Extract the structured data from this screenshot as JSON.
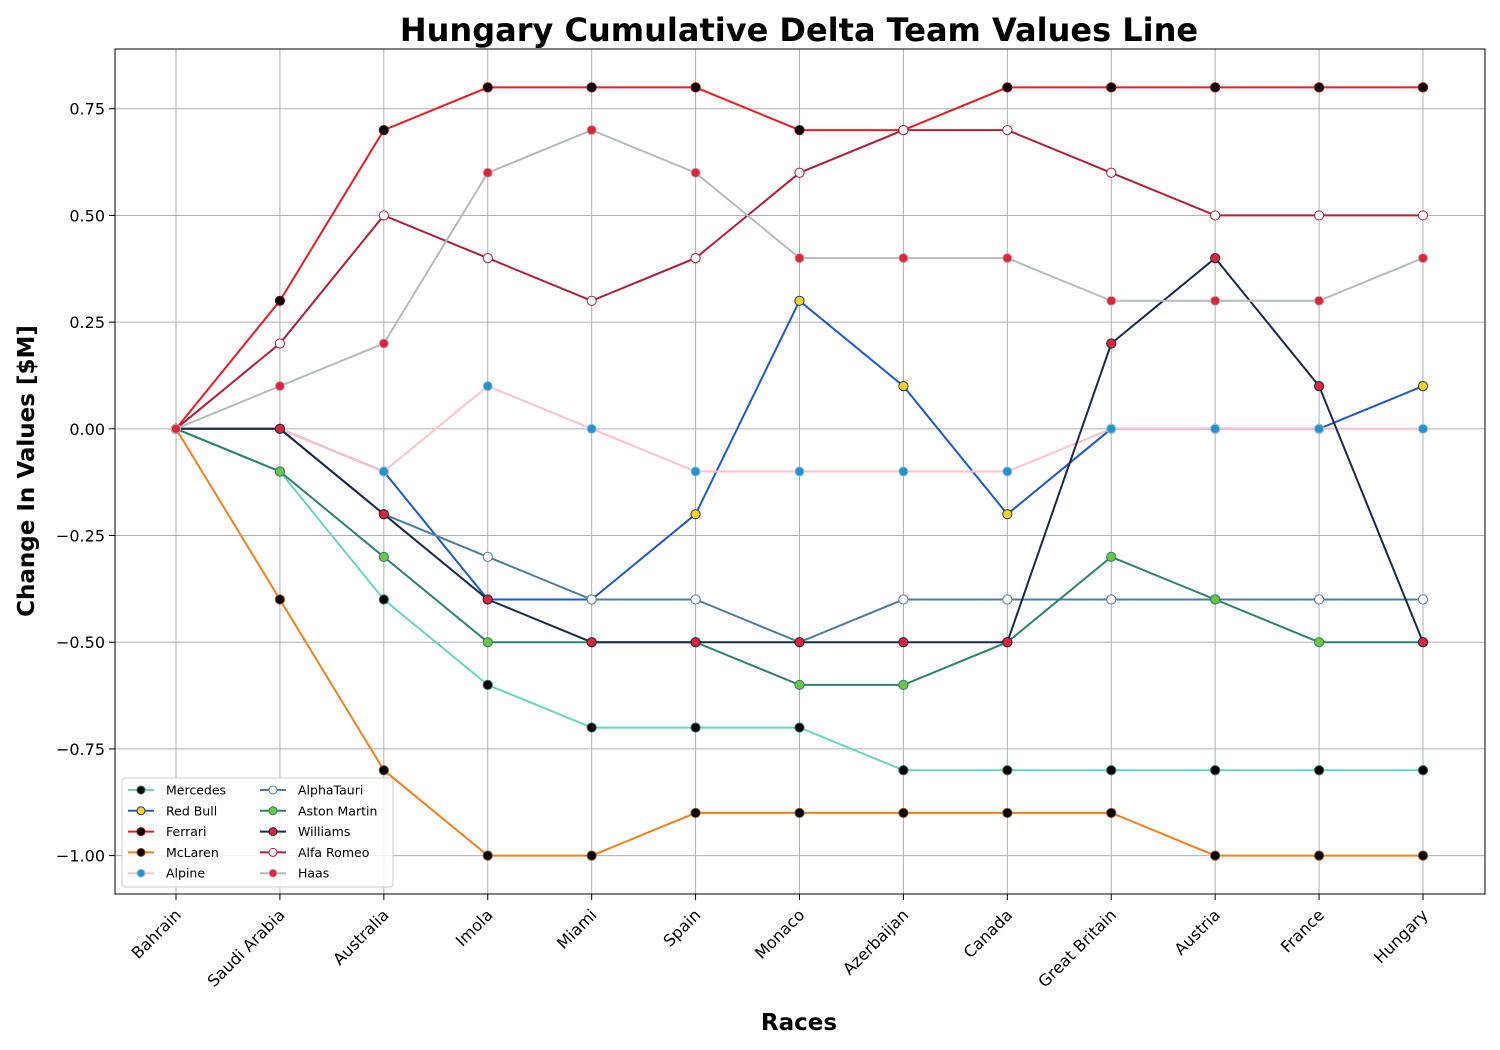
{
  "chart_data": {
    "type": "line",
    "title": "Hungary Cumulative Delta Team Values Line",
    "xlabel": "Races",
    "ylabel": "Change In Values [$M]",
    "categories": [
      "Bahrain",
      "Saudi Arabia",
      "Australia",
      "Imola",
      "Miami",
      "Spain",
      "Monaco",
      "Azerbaijan",
      "Canada",
      "Great Britain",
      "Austria",
      "France",
      "Hungary"
    ],
    "ylim": [
      -1.09,
      0.89
    ],
    "yticks": [
      -1.0,
      -0.75,
      -0.5,
      -0.25,
      0.0,
      0.25,
      0.5,
      0.75
    ],
    "ytick_labels": [
      "−1.00",
      "−0.75",
      "−0.50",
      "−0.25",
      "0.00",
      "0.25",
      "0.50",
      "0.75"
    ],
    "grid": true,
    "legend_position": "lower-left",
    "series": [
      {
        "name": "Mercedes",
        "line_color": "#6cd3bf",
        "marker_color": "#000000",
        "marker_edge": "#2a6e62",
        "values": [
          0,
          -0.1,
          -0.4,
          -0.6,
          -0.7,
          -0.7,
          -0.7,
          -0.8,
          -0.8,
          -0.8,
          -0.8,
          -0.8,
          -0.8
        ]
      },
      {
        "name": "Red Bull",
        "line_color": "#1e5bc6",
        "marker_color": "#fdd31b",
        "marker_edge": "#1e3a6e",
        "values": [
          0,
          0,
          -0.1,
          -0.4,
          -0.4,
          -0.2,
          0.3,
          0.1,
          -0.2,
          0.0,
          0.0,
          0.0,
          0.1
        ]
      },
      {
        "name": "Ferrari",
        "line_color": "#ed1c24",
        "marker_color": "#000000",
        "marker_edge": "#8b0000",
        "values": [
          0,
          0.3,
          0.7,
          0.8,
          0.8,
          0.8,
          0.7,
          0.7,
          0.8,
          0.8,
          0.8,
          0.8,
          0.8
        ]
      },
      {
        "name": "McLaren",
        "line_color": "#f58020",
        "marker_color": "#000000",
        "marker_edge": "#8a4a10",
        "values": [
          0,
          -0.4,
          -0.8,
          -1.0,
          -1.0,
          -0.9,
          -0.9,
          -0.9,
          -0.9,
          -0.9,
          -1.0,
          -1.0,
          -1.0
        ]
      },
      {
        "name": "Alpine",
        "line_color": "#ffc0cb",
        "marker_color": "#2293d1",
        "marker_edge": "#a9c4de",
        "values": [
          0,
          0,
          -0.1,
          0.1,
          0.0,
          -0.1,
          -0.1,
          -0.1,
          -0.1,
          0.0,
          0.0,
          0.0,
          0.0
        ]
      },
      {
        "name": "AlphaTauri",
        "line_color": "#4e7c9b",
        "marker_color": "#ffffff",
        "marker_edge": "#4e7c9b",
        "values": [
          0,
          0,
          -0.2,
          -0.3,
          -0.4,
          -0.4,
          -0.5,
          -0.4,
          -0.4,
          -0.4,
          -0.4,
          -0.4,
          -0.4
        ]
      },
      {
        "name": "Aston Martin",
        "line_color": "#2d826d",
        "marker_color": "#6cc644",
        "marker_edge": "#2d826d",
        "values": [
          0,
          -0.1,
          -0.3,
          -0.5,
          -0.5,
          -0.5,
          -0.6,
          -0.6,
          -0.5,
          -0.3,
          -0.4,
          -0.5,
          -0.5
        ]
      },
      {
        "name": "Williams",
        "line_color": "#172a4d",
        "marker_color": "#e0233b",
        "marker_edge": "#172a4d",
        "values": [
          0,
          0,
          -0.2,
          -0.4,
          -0.5,
          -0.5,
          -0.5,
          -0.5,
          -0.5,
          0.2,
          0.4,
          0.1,
          -0.5
        ]
      },
      {
        "name": "Alfa Romeo",
        "line_color": "#b12039",
        "marker_color": "#ffffff",
        "marker_edge": "#b12039",
        "values": [
          0,
          0.2,
          0.5,
          0.4,
          0.3,
          0.4,
          0.6,
          0.7,
          0.7,
          0.6,
          0.5,
          0.5,
          0.5
        ]
      },
      {
        "name": "Haas",
        "line_color": "#b6babd",
        "marker_color": "#e0233b",
        "marker_edge": "#b6babd",
        "values": [
          0,
          0.1,
          0.2,
          0.6,
          0.7,
          0.6,
          0.4,
          0.4,
          0.4,
          0.3,
          0.3,
          0.3,
          0.4
        ]
      }
    ]
  }
}
